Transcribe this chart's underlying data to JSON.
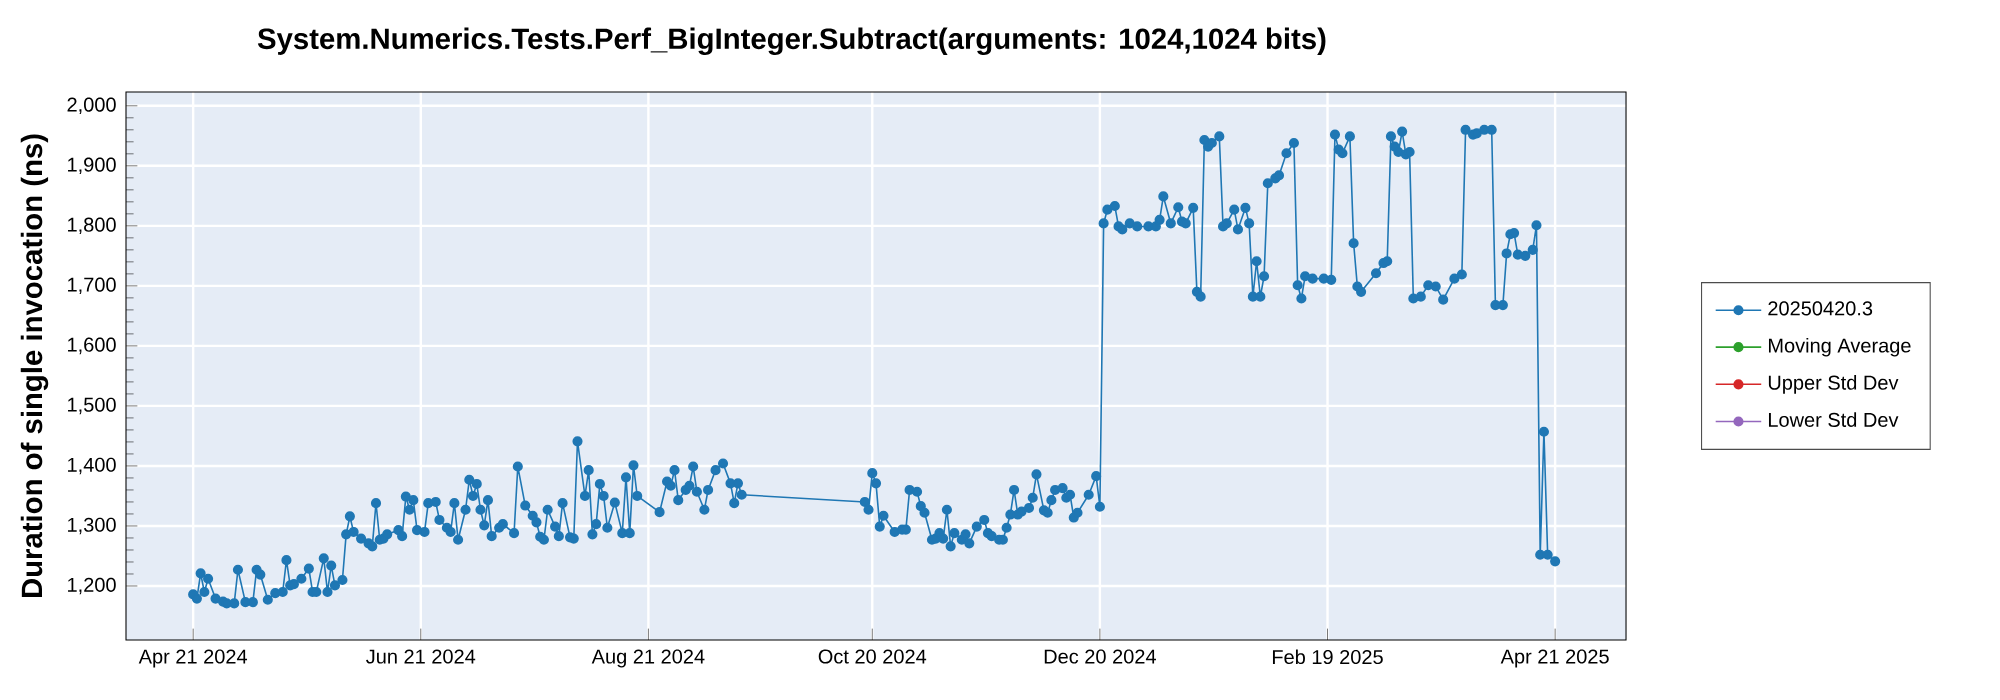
{
  "chart_data": {
    "type": "line",
    "title": "System.Numerics.Tests.Perf_BigInteger.Subtract(arguments: 1024,1024 bits)",
    "ylabel": "Duration of single invocation (ns)",
    "xlim": [
      "2024-04-03",
      "2025-05-10"
    ],
    "ylim": [
      1110,
      2023
    ],
    "xticks": [
      {
        "value": "2024-04-21",
        "label": "Apr 21 2024"
      },
      {
        "value": "2024-06-21",
        "label": "Jun 21 2024"
      },
      {
        "value": "2024-08-21",
        "label": "Aug 21 2024"
      },
      {
        "value": "2024-10-20",
        "label": "Oct 20 2024"
      },
      {
        "value": "2024-12-20",
        "label": "Dec 20 2024"
      },
      {
        "value": "2025-02-19",
        "label": "Feb 19 2025"
      },
      {
        "value": "2025-04-21",
        "label": "Apr 21 2025"
      }
    ],
    "yticks": [
      {
        "value": 1200,
        "label": "1,200"
      },
      {
        "value": 1300,
        "label": "1,300"
      },
      {
        "value": 1400,
        "label": "1,400"
      },
      {
        "value": 1500,
        "label": "1,500"
      },
      {
        "value": 1600,
        "label": "1,600"
      },
      {
        "value": 1700,
        "label": "1,700"
      },
      {
        "value": 1800,
        "label": "1,800"
      },
      {
        "value": 1900,
        "label": "1,900"
      },
      {
        "value": 2000,
        "label": "2,000"
      }
    ],
    "grid": true,
    "legend": "right",
    "marker": "circle",
    "line_style": "solid",
    "series": [
      {
        "name": "20250420.3",
        "color": "#1f77b4",
        "x": [
          "2024-04-21",
          "2024-04-22",
          "2024-04-23",
          "2024-04-24",
          "2024-04-25",
          "2024-04-27",
          "2024-04-29",
          "2024-04-30",
          "2024-05-02",
          "2024-05-03",
          "2024-05-05",
          "2024-05-07",
          "2024-05-08",
          "2024-05-09",
          "2024-05-11",
          "2024-05-13",
          "2024-05-15",
          "2024-05-16",
          "2024-05-17",
          "2024-05-18",
          "2024-05-20",
          "2024-05-22",
          "2024-05-23",
          "2024-05-24",
          "2024-05-26",
          "2024-05-27",
          "2024-05-28",
          "2024-05-29",
          "2024-05-31",
          "2024-06-01",
          "2024-06-02",
          "2024-06-03",
          "2024-06-05",
          "2024-06-07",
          "2024-06-08",
          "2024-06-09",
          "2024-06-10",
          "2024-06-11",
          "2024-06-12",
          "2024-06-15",
          "2024-06-16",
          "2024-06-17",
          "2024-06-18",
          "2024-06-19",
          "2024-06-20",
          "2024-06-22",
          "2024-06-23",
          "2024-06-25",
          "2024-06-26",
          "2024-06-28",
          "2024-06-29",
          "2024-06-30",
          "2024-07-01",
          "2024-07-03",
          "2024-07-04",
          "2024-07-05",
          "2024-07-06",
          "2024-07-07",
          "2024-07-08",
          "2024-07-09",
          "2024-07-10",
          "2024-07-12",
          "2024-07-13",
          "2024-07-16",
          "2024-07-17",
          "2024-07-19",
          "2024-07-21",
          "2024-07-22",
          "2024-07-23",
          "2024-07-24",
          "2024-07-25",
          "2024-07-27",
          "2024-07-28",
          "2024-07-29",
          "2024-07-31",
          "2024-08-01",
          "2024-08-02",
          "2024-08-04",
          "2024-08-05",
          "2024-08-06",
          "2024-08-07",
          "2024-08-08",
          "2024-08-09",
          "2024-08-10",
          "2024-08-12",
          "2024-08-14",
          "2024-08-15",
          "2024-08-16",
          "2024-08-17",
          "2024-08-18",
          "2024-08-24",
          "2024-08-26",
          "2024-08-27",
          "2024-08-28",
          "2024-08-29",
          "2024-08-31",
          "2024-09-01",
          "2024-09-02",
          "2024-09-03",
          "2024-09-05",
          "2024-09-06",
          "2024-09-08",
          "2024-09-10",
          "2024-09-12",
          "2024-09-13",
          "2024-09-14",
          "2024-09-15",
          "2024-10-18",
          "2024-10-19",
          "2024-10-20",
          "2024-10-21",
          "2024-10-22",
          "2024-10-23",
          "2024-10-26",
          "2024-10-28",
          "2024-10-29",
          "2024-10-30",
          "2024-11-01",
          "2024-11-02",
          "2024-11-03",
          "2024-11-05",
          "2024-11-06",
          "2024-11-07",
          "2024-11-08",
          "2024-11-09",
          "2024-11-10",
          "2024-11-11",
          "2024-11-13",
          "2024-11-14",
          "2024-11-15",
          "2024-11-17",
          "2024-11-19",
          "2024-11-20",
          "2024-11-21",
          "2024-11-23",
          "2024-11-24",
          "2024-11-25",
          "2024-11-26",
          "2024-11-27",
          "2024-11-28",
          "2024-11-29",
          "2024-12-01",
          "2024-12-02",
          "2024-12-03",
          "2024-12-05",
          "2024-12-06",
          "2024-12-07",
          "2024-12-08",
          "2024-12-10",
          "2024-12-11",
          "2024-12-12",
          "2024-12-13",
          "2024-12-14",
          "2024-12-17",
          "2024-12-19",
          "2024-12-20",
          "2024-12-21",
          "2024-12-22",
          "2024-12-24",
          "2024-12-25",
          "2024-12-26",
          "2024-12-28",
          "2024-12-30",
          "2025-01-02",
          "2025-01-04",
          "2025-01-05",
          "2025-01-06",
          "2025-01-08",
          "2025-01-10",
          "2025-01-11",
          "2025-01-12",
          "2025-01-14",
          "2025-01-15",
          "2025-01-16",
          "2025-01-17",
          "2025-01-18",
          "2025-01-19",
          "2025-01-21",
          "2025-01-22",
          "2025-01-23",
          "2025-01-25",
          "2025-01-26",
          "2025-01-28",
          "2025-01-29",
          "2025-01-30",
          "2025-01-31",
          "2025-02-01",
          "2025-02-02",
          "2025-02-03",
          "2025-02-05",
          "2025-02-06",
          "2025-02-08",
          "2025-02-10",
          "2025-02-11",
          "2025-02-12",
          "2025-02-13",
          "2025-02-15",
          "2025-02-18",
          "2025-02-20",
          "2025-02-21",
          "2025-02-22",
          "2025-02-23",
          "2025-02-25",
          "2025-02-26",
          "2025-02-27",
          "2025-02-28",
          "2025-03-04",
          "2025-03-06",
          "2025-03-07",
          "2025-03-08",
          "2025-03-09",
          "2025-03-10",
          "2025-03-11",
          "2025-03-12",
          "2025-03-13",
          "2025-03-14",
          "2025-03-16",
          "2025-03-18",
          "2025-03-20",
          "2025-03-22",
          "2025-03-25",
          "2025-03-27",
          "2025-03-28",
          "2025-03-30",
          "2025-03-31",
          "2025-04-02",
          "2025-04-04",
          "2025-04-05",
          "2025-04-07",
          "2025-04-08",
          "2025-04-09",
          "2025-04-10",
          "2025-04-11",
          "2025-04-13",
          "2025-04-15",
          "2025-04-16",
          "2025-04-17",
          "2025-04-18",
          "2025-04-19",
          "2025-04-21"
        ],
        "values": [
          1186,
          1179,
          1221,
          1190,
          1212,
          1179,
          1174,
          1171,
          1171,
          1227,
          1173,
          1173,
          1227,
          1219,
          1177,
          1188,
          1190,
          1243,
          1201,
          1203,
          1212,
          1229,
          1190,
          1190,
          1246,
          1190,
          1234,
          1201,
          1210,
          1286,
          1316,
          1290,
          1279,
          1271,
          1266,
          1338,
          1277,
          1279,
          1286,
          1293,
          1283,
          1349,
          1327,
          1343,
          1293,
          1290,
          1338,
          1340,
          1310,
          1297,
          1290,
          1338,
          1277,
          1327,
          1377,
          1350,
          1370,
          1327,
          1301,
          1343,
          1283,
          1297,
          1303,
          1288,
          1399,
          1334,
          1317,
          1306,
          1282,
          1277,
          1327,
          1299,
          1283,
          1338,
          1281,
          1279,
          1441,
          1350,
          1393,
          1286,
          1303,
          1370,
          1350,
          1297,
          1339,
          1288,
          1381,
          1288,
          1401,
          1350,
          1323,
          1374,
          1367,
          1393,
          1343,
          1360,
          1367,
          1399,
          1357,
          1327,
          1360,
          1393,
          1404,
          1371,
          1338,
          1371,
          1352,
          1340,
          1327,
          1388,
          1371,
          1299,
          1317,
          1290,
          1294,
          1294,
          1360,
          1357,
          1333,
          1322,
          1277,
          1279,
          1288,
          1279,
          1327,
          1266,
          1288,
          1277,
          1286,
          1271,
          1299,
          1310,
          1288,
          1283,
          1277,
          1277,
          1297,
          1319,
          1360,
          1319,
          1324,
          1330,
          1347,
          1386,
          1326,
          1322,
          1343,
          1360,
          1363,
          1347,
          1352,
          1314,
          1322,
          1352,
          1383,
          1332,
          1804,
          1827,
          1833,
          1799,
          1794,
          1804,
          1799,
          1799,
          1799,
          1810,
          1849,
          1804,
          1831,
          1807,
          1804,
          1830,
          1690,
          1682,
          1943,
          1932,
          1938,
          1949,
          1799,
          1804,
          1827,
          1794,
          1830,
          1804,
          1682,
          1741,
          1682,
          1716,
          1871,
          1879,
          1884,
          1921,
          1938,
          1701,
          1679,
          1716,
          1712,
          1712,
          1710,
          1952,
          1927,
          1921,
          1949,
          1771,
          1699,
          1690,
          1721,
          1738,
          1741,
          1949,
          1932,
          1923,
          1957,
          1919,
          1923,
          1679,
          1682,
          1701,
          1699,
          1677,
          1712,
          1719,
          1960,
          1952,
          1954,
          1960,
          1960,
          1668,
          1668,
          1754,
          1786,
          1788,
          1752,
          1750,
          1760,
          1801,
          1252,
          1457,
          1252,
          1241
        ]
      },
      {
        "name": "Moving Average",
        "color": "#2ca02c"
      },
      {
        "name": "Upper Std Dev",
        "color": "#d62728"
      },
      {
        "name": "Lower Std Dev",
        "color": "#9467bd"
      }
    ]
  }
}
